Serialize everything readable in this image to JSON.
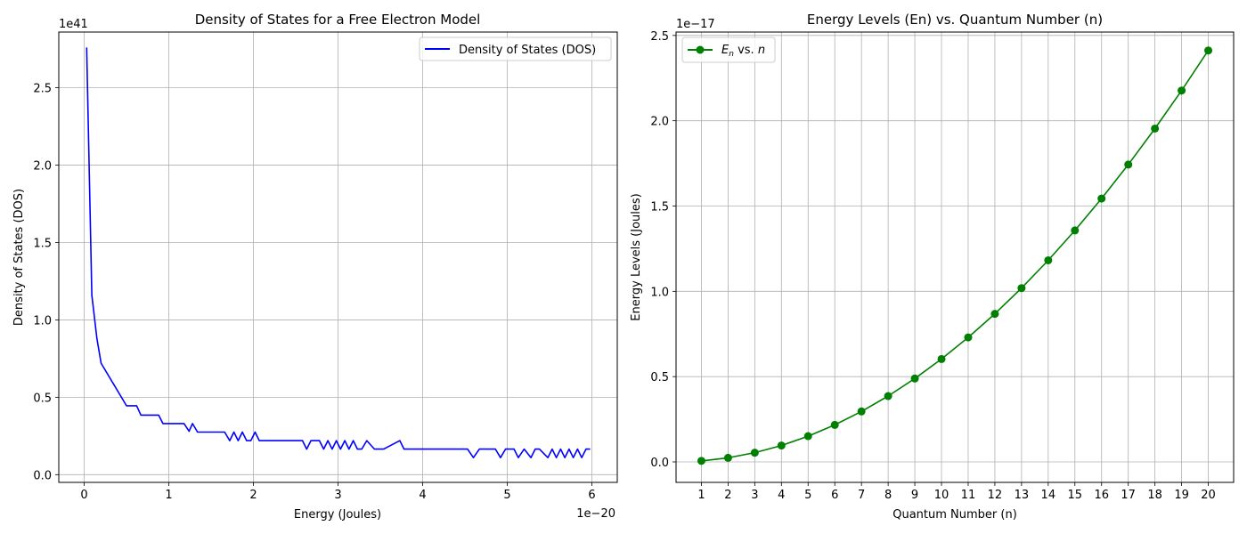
{
  "chart_data": [
    {
      "type": "line",
      "title": "Density of States for a Free Electron Model",
      "xlabel": "Energy (Joules)",
      "ylabel": "Density of States (DOS)",
      "x_offset_text": "1e−20",
      "y_offset_text": "1e41",
      "xlim": [
        -0.3,
        6.3
      ],
      "ylim": [
        -0.05,
        2.86
      ],
      "x_ticks": [
        0,
        1,
        2,
        3,
        4,
        5,
        6
      ],
      "x_tick_labels": [
        "0",
        "1",
        "2",
        "3",
        "4",
        "5",
        "6"
      ],
      "y_ticks": [
        0.0,
        0.5,
        1.0,
        1.5,
        2.0,
        2.5
      ],
      "y_tick_labels": [
        "0.0",
        "0.5",
        "1.0",
        "1.5",
        "2.0",
        "2.5"
      ],
      "grid": true,
      "legend": "top-right",
      "series": [
        {
          "name": "Density of States (DOS)",
          "color": "#0000ff",
          "x": [
            0.03,
            0.09,
            0.15,
            0.2,
            0.5,
            0.52,
            0.62,
            0.67,
            0.88,
            0.93,
            1.18,
            1.24,
            1.28,
            1.34,
            1.66,
            1.72,
            1.77,
            1.82,
            1.87,
            1.92,
            1.97,
            2.02,
            2.07,
            2.12,
            2.18,
            2.23,
            2.58,
            2.63,
            2.68,
            2.78,
            2.83,
            2.88,
            2.93,
            2.98,
            3.03,
            3.08,
            3.13,
            3.18,
            3.23,
            3.28,
            3.34,
            3.43,
            3.48,
            3.54,
            3.73,
            3.78,
            3.83,
            4.53,
            4.6,
            4.67,
            4.86,
            4.92,
            4.98,
            5.08,
            5.13,
            5.2,
            5.28,
            5.33,
            5.38,
            5.48,
            5.53,
            5.58,
            5.63,
            5.68,
            5.73,
            5.78,
            5.83,
            5.88,
            5.93,
            5.98
          ],
          "y": [
            2.76,
            1.16,
            0.88,
            0.72,
            0.445,
            0.445,
            0.445,
            0.385,
            0.385,
            0.33,
            0.33,
            0.28,
            0.33,
            0.275,
            0.275,
            0.22,
            0.275,
            0.22,
            0.275,
            0.22,
            0.22,
            0.275,
            0.22,
            0.22,
            0.22,
            0.22,
            0.22,
            0.165,
            0.22,
            0.22,
            0.165,
            0.22,
            0.165,
            0.22,
            0.165,
            0.22,
            0.165,
            0.22,
            0.165,
            0.165,
            0.22,
            0.165,
            0.165,
            0.165,
            0.22,
            0.165,
            0.165,
            0.165,
            0.11,
            0.165,
            0.165,
            0.11,
            0.165,
            0.165,
            0.11,
            0.165,
            0.11,
            0.165,
            0.165,
            0.11,
            0.165,
            0.11,
            0.165,
            0.11,
            0.165,
            0.11,
            0.165,
            0.11,
            0.165,
            0.165
          ]
        }
      ]
    },
    {
      "type": "line",
      "title": "Energy Levels (En) vs. Quantum Number (n)",
      "xlabel": "Quantum Number (n)",
      "ylabel": "Energy Levels (Joules)",
      "y_offset_text": "1e−17",
      "xlim": [
        0.05,
        20.95
      ],
      "ylim": [
        -0.12,
        2.52
      ],
      "x_ticks": [
        1,
        2,
        3,
        4,
        5,
        6,
        7,
        8,
        9,
        10,
        11,
        12,
        13,
        14,
        15,
        16,
        17,
        18,
        19,
        20
      ],
      "x_tick_labels": [
        "1",
        "2",
        "3",
        "4",
        "5",
        "6",
        "7",
        "8",
        "9",
        "10",
        "11",
        "12",
        "13",
        "14",
        "15",
        "16",
        "17",
        "18",
        "19",
        "20"
      ],
      "y_ticks": [
        0.0,
        0.5,
        1.0,
        1.5,
        2.0,
        2.5
      ],
      "y_tick_labels": [
        "0.0",
        "0.5",
        "1.0",
        "1.5",
        "2.0",
        "2.5"
      ],
      "grid": true,
      "legend": "top-left",
      "series": [
        {
          "name": "E_n vs. n",
          "legend_parts": [
            "E",
            "n",
            " vs. ",
            "n"
          ],
          "color": "#008000",
          "marker": "circle",
          "x": [
            1,
            2,
            3,
            4,
            5,
            6,
            7,
            8,
            9,
            10,
            11,
            12,
            13,
            14,
            15,
            16,
            17,
            18,
            19,
            20
          ],
          "y": [
            0.006,
            0.024,
            0.054,
            0.096,
            0.151,
            0.217,
            0.296,
            0.386,
            0.489,
            0.603,
            0.73,
            0.868,
            1.019,
            1.182,
            1.357,
            1.544,
            1.743,
            1.954,
            2.177,
            2.412
          ]
        }
      ]
    }
  ]
}
